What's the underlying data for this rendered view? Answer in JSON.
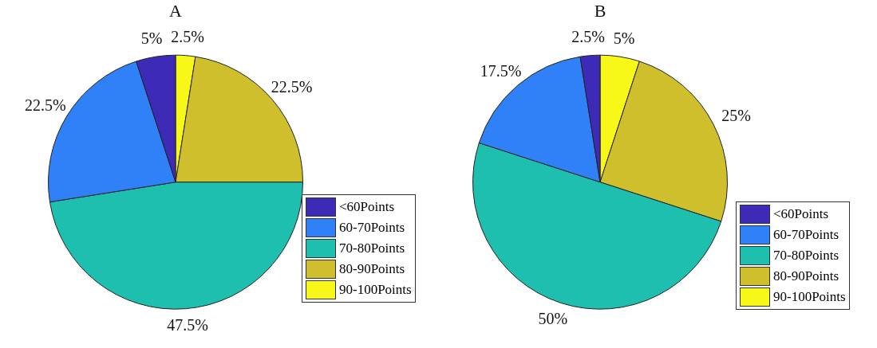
{
  "chart_data": [
    {
      "type": "pie",
      "title": "A",
      "categories": [
        "<60Points",
        "60-70Points",
        "70-80Points",
        "80-90Points",
        "90-100Points"
      ],
      "values": [
        5,
        22.5,
        47.5,
        22.5,
        2.5
      ],
      "value_labels": [
        "5%",
        "22.5%",
        "47.5%",
        "22.5%",
        "2.5%"
      ],
      "colors": [
        "#3d2bb8",
        "#3080f8",
        "#1fbfb0",
        "#d0bf2c",
        "#f8f818"
      ],
      "legend": "bottom right"
    },
    {
      "type": "pie",
      "title": "B",
      "categories": [
        "<60Points",
        "60-70Points",
        "70-80Points",
        "80-90Points",
        "90-100Points"
      ],
      "values": [
        2.5,
        17.5,
        50,
        25,
        5
      ],
      "value_labels": [
        "2.5%",
        "17.5%",
        "50%",
        "25%",
        "5%"
      ],
      "colors": [
        "#3d2bb8",
        "#3080f8",
        "#1fbfb0",
        "#d0bf2c",
        "#f8f818"
      ],
      "legend": "bottom right"
    }
  ]
}
